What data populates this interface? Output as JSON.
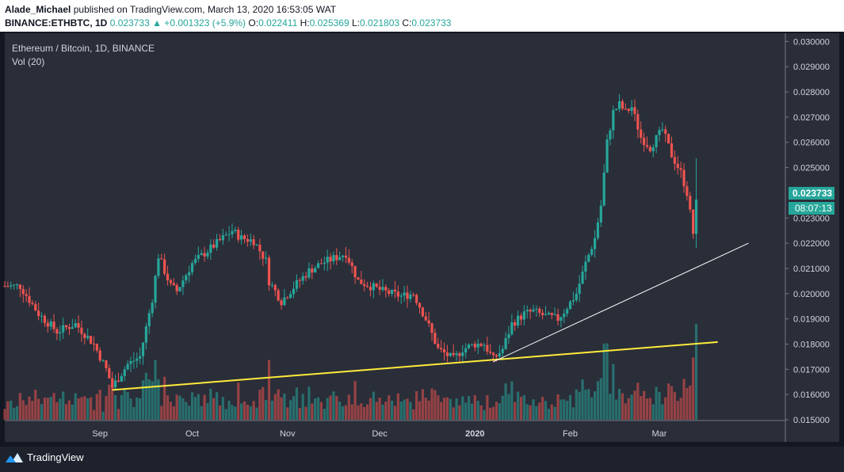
{
  "header": {
    "author": "Alade_Michael",
    "published_text": "published on TradingView.com, March 13, 2020 16:53:05 WAT",
    "symbol": "BINANCE:ETHBTC, 1D",
    "last": "0.023733",
    "change": "▲ +0.001323 (+5.9%)",
    "o_label": "O:",
    "o_value": "0.022411",
    "h_label": "H:",
    "h_value": "0.025369",
    "l_label": "L:",
    "l_value": "0.021803",
    "c_label": "C:",
    "c_value": "0.023733"
  },
  "chart_data": {
    "type": "candlestick",
    "title": "Ethereum / Bitcoin, 1D, BINANCE",
    "indicator_label": "Vol (20)",
    "x_ticks": [
      "Sep",
      "Oct",
      "Nov",
      "Dec",
      "2020",
      "Feb",
      "Mar"
    ],
    "y_ticks": [
      "0.030000",
      "0.029000",
      "0.028000",
      "0.027000",
      "0.026000",
      "0.025000",
      "0.024000",
      "0.023000",
      "0.022000",
      "0.021000",
      "0.020000",
      "0.019000",
      "0.018000",
      "0.017000",
      "0.016000",
      "0.015000"
    ],
    "ylim": [
      0.015,
      0.0302
    ],
    "last_price_label": "0.023733",
    "countdown_label": "08:07:13",
    "price_path": [
      [
        "2019-08-06",
        0.0203
      ],
      [
        "2019-08-12",
        0.0192
      ],
      [
        "2019-08-18",
        0.0185
      ],
      [
        "2019-08-24",
        0.0188
      ],
      [
        "2019-08-30",
        0.018
      ],
      [
        "2019-09-03",
        0.017
      ],
      [
        "2019-09-05",
        0.0163
      ],
      [
        "2019-09-10",
        0.0172
      ],
      [
        "2019-09-14",
        0.0175
      ],
      [
        "2019-09-18",
        0.0198
      ],
      [
        "2019-09-20",
        0.0215
      ],
      [
        "2019-09-24",
        0.0203
      ],
      [
        "2019-09-26",
        0.0201
      ],
      [
        "2019-10-01",
        0.0212
      ],
      [
        "2019-10-05",
        0.0216
      ],
      [
        "2019-10-09",
        0.022
      ],
      [
        "2019-10-14",
        0.0225
      ],
      [
        "2019-10-17",
        0.0222
      ],
      [
        "2019-10-21",
        0.0221
      ],
      [
        "2019-10-25",
        0.0213
      ],
      [
        "2019-10-26",
        0.0205
      ],
      [
        "2019-10-30",
        0.0197
      ],
      [
        "2019-11-04",
        0.0204
      ],
      [
        "2019-11-08",
        0.0209
      ],
      [
        "2019-11-12",
        0.0212
      ],
      [
        "2019-11-16",
        0.0214
      ],
      [
        "2019-11-20",
        0.0216
      ],
      [
        "2019-11-24",
        0.0205
      ],
      [
        "2019-11-28",
        0.0203
      ],
      [
        "2019-12-02",
        0.0201
      ],
      [
        "2019-12-08",
        0.0199
      ],
      [
        "2019-12-12",
        0.02
      ],
      [
        "2019-12-16",
        0.019
      ],
      [
        "2019-12-20",
        0.0178
      ],
      [
        "2019-12-25",
        0.0174
      ],
      [
        "2019-12-28",
        0.0178
      ],
      [
        "2020-01-01",
        0.018
      ],
      [
        "2020-01-04",
        0.018
      ],
      [
        "2020-01-07",
        0.0174
      ],
      [
        "2020-01-10",
        0.0178
      ],
      [
        "2020-01-13",
        0.0188
      ],
      [
        "2020-01-17",
        0.0192
      ],
      [
        "2020-01-20",
        0.0193
      ],
      [
        "2020-01-24",
        0.0191
      ],
      [
        "2020-01-28",
        0.019
      ],
      [
        "2020-01-30",
        0.0193
      ],
      [
        "2020-02-03",
        0.02
      ],
      [
        "2020-02-06",
        0.0212
      ],
      [
        "2020-02-09",
        0.0222
      ],
      [
        "2020-02-11",
        0.0235
      ],
      [
        "2020-02-13",
        0.026
      ],
      [
        "2020-02-15",
        0.0272
      ],
      [
        "2020-02-17",
        0.0275
      ],
      [
        "2020-02-19",
        0.0272
      ],
      [
        "2020-02-21",
        0.0274
      ],
      [
        "2020-02-24",
        0.0262
      ],
      [
        "2020-02-27",
        0.0258
      ],
      [
        "2020-03-02",
        0.0265
      ],
      [
        "2020-03-05",
        0.0255
      ],
      [
        "2020-03-08",
        0.0248
      ],
      [
        "2020-03-10",
        0.024
      ],
      [
        "2020-03-12",
        0.0224
      ],
      [
        "2020-03-13",
        0.023733
      ]
    ],
    "annotations": [
      {
        "type": "trendline",
        "color": "#ffeb3b",
        "points": [
          [
            "2019-09-05",
            0.01618
          ],
          [
            "2020-03-20",
            0.01808
          ]
        ]
      },
      {
        "type": "trendline",
        "color": "#ffffff",
        "points": [
          [
            "2020-01-07",
            0.0173
          ],
          [
            "2020-03-30",
            0.022
          ]
        ]
      }
    ],
    "colors": {
      "up": "#26a69a",
      "down": "#ef5350",
      "background": "#131722",
      "axis_text": "#d1d4dc"
    }
  },
  "footer": {
    "brand": "TradingView"
  }
}
